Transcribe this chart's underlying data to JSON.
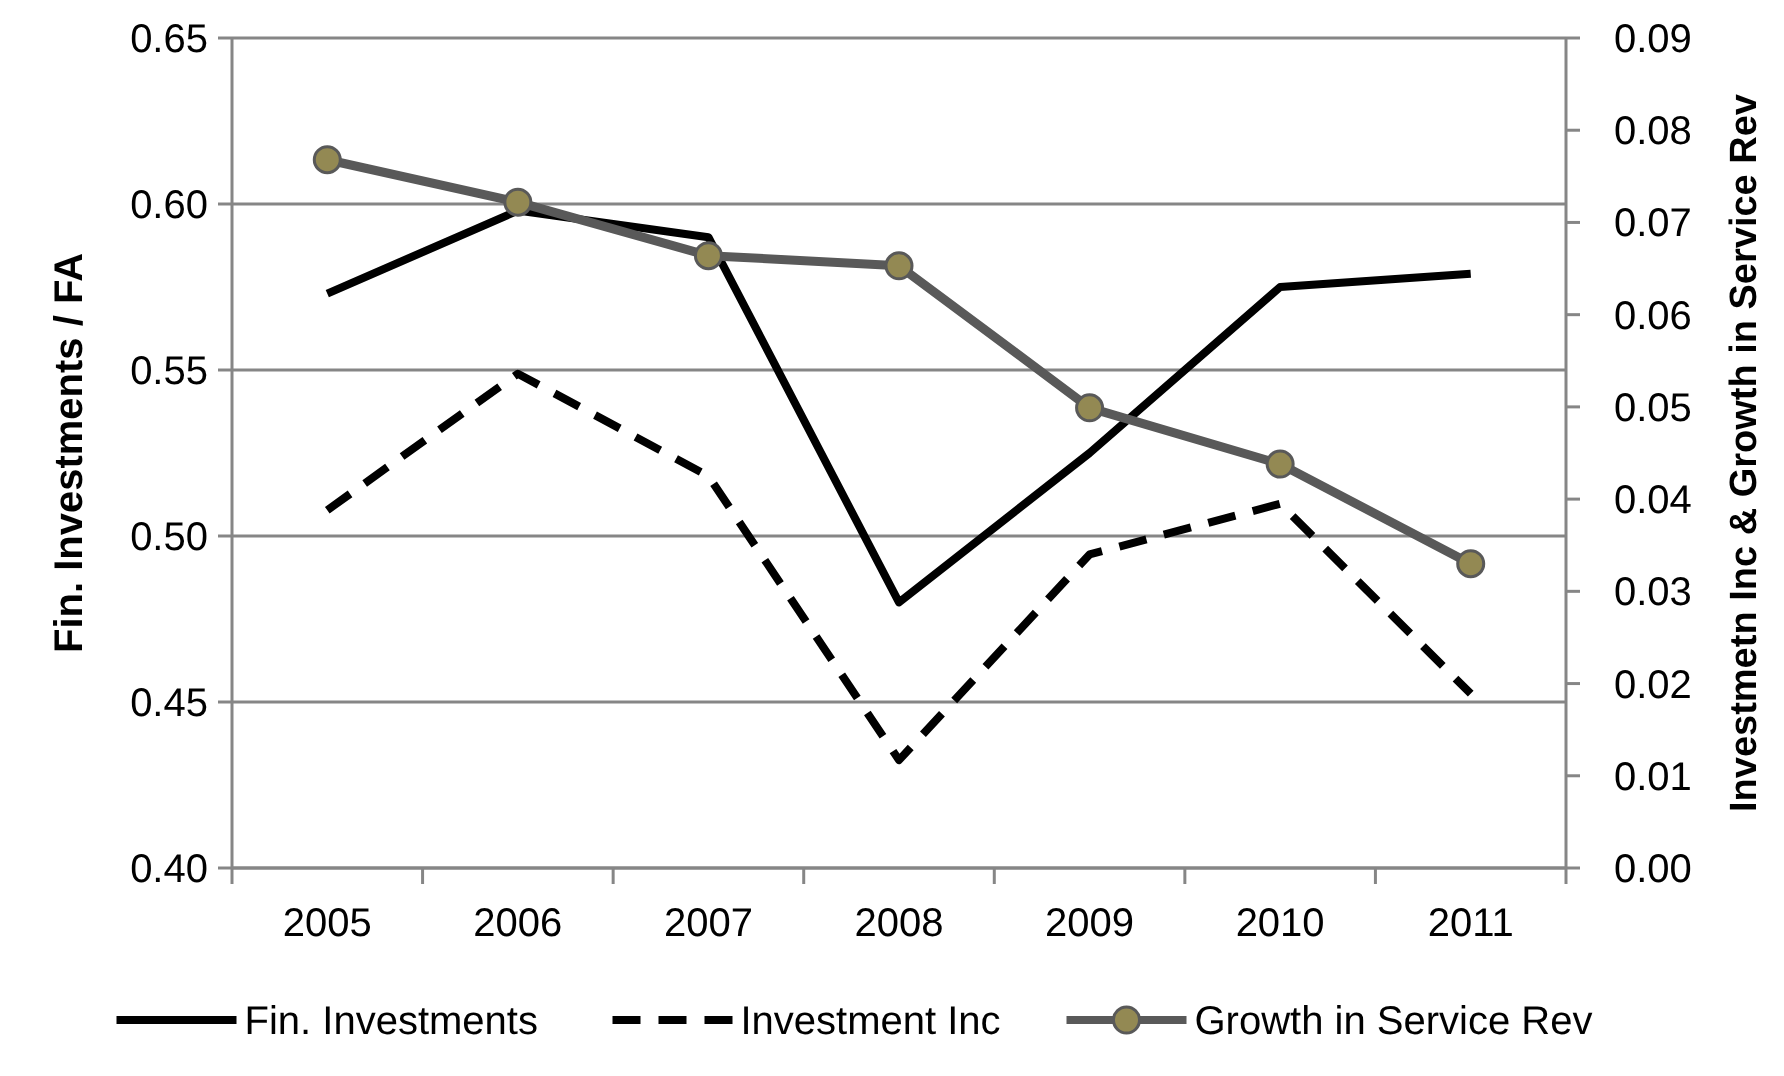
{
  "chart_data": {
    "type": "line",
    "xlabel": null,
    "ylabel": "Fin. Investments / FA",
    "y2label": "Investmetn Inc & Growth in Service Rev",
    "categories": [
      "2005",
      "2006",
      "2007",
      "2008",
      "2009",
      "2010",
      "2011"
    ],
    "series": [
      {
        "name": "Fin. Investments",
        "color": "#000000",
        "line_style": "solid",
        "marker": "none",
        "values": [
          0.573,
          0.598,
          0.59,
          0.48,
          0.525,
          0.575,
          0.579
        ]
      },
      {
        "name": "Investment Inc",
        "color": "#000000",
        "line_style": "dashed",
        "marker": "none",
        "axis": "y2",
        "values": [
          0.0388,
          0.0536,
          0.0425,
          0.0117,
          0.034,
          0.0395,
          0.0189
        ]
      },
      {
        "name": "Growth in Service Rev",
        "color": "#595959",
        "line_style": "solid",
        "marker": "circle",
        "axis": "y2",
        "values": [
          0.0768,
          0.0722,
          0.0664,
          0.0653,
          0.0499,
          0.0438,
          0.033
        ]
      }
    ],
    "ylim": [
      0.4,
      0.65
    ],
    "yticks": [
      {
        "value": 0.4,
        "label": "0.40"
      },
      {
        "value": 0.45,
        "label": "0.45"
      },
      {
        "value": 0.5,
        "label": "0.50"
      },
      {
        "value": 0.55,
        "label": "0.55"
      },
      {
        "value": 0.6,
        "label": "0.60"
      },
      {
        "value": 0.65,
        "label": "0.65"
      }
    ],
    "y2lim": [
      0,
      0.09
    ],
    "y2ticks": [
      {
        "value": 0,
        "label": "0.00"
      },
      {
        "value": 0.01,
        "label": "0.01"
      },
      {
        "value": 0.02,
        "label": "0.02"
      },
      {
        "value": 0.03,
        "label": "0.03"
      },
      {
        "value": 0.04,
        "label": "0.04"
      },
      {
        "value": 0.05,
        "label": "0.05"
      },
      {
        "value": 0.06,
        "label": "0.06"
      },
      {
        "value": 0.07,
        "label": "0.07"
      },
      {
        "value": 0.08,
        "label": "0.08"
      },
      {
        "value": 0.09,
        "label": "0.09"
      }
    ],
    "grid": "y",
    "legend": "bottom"
  }
}
